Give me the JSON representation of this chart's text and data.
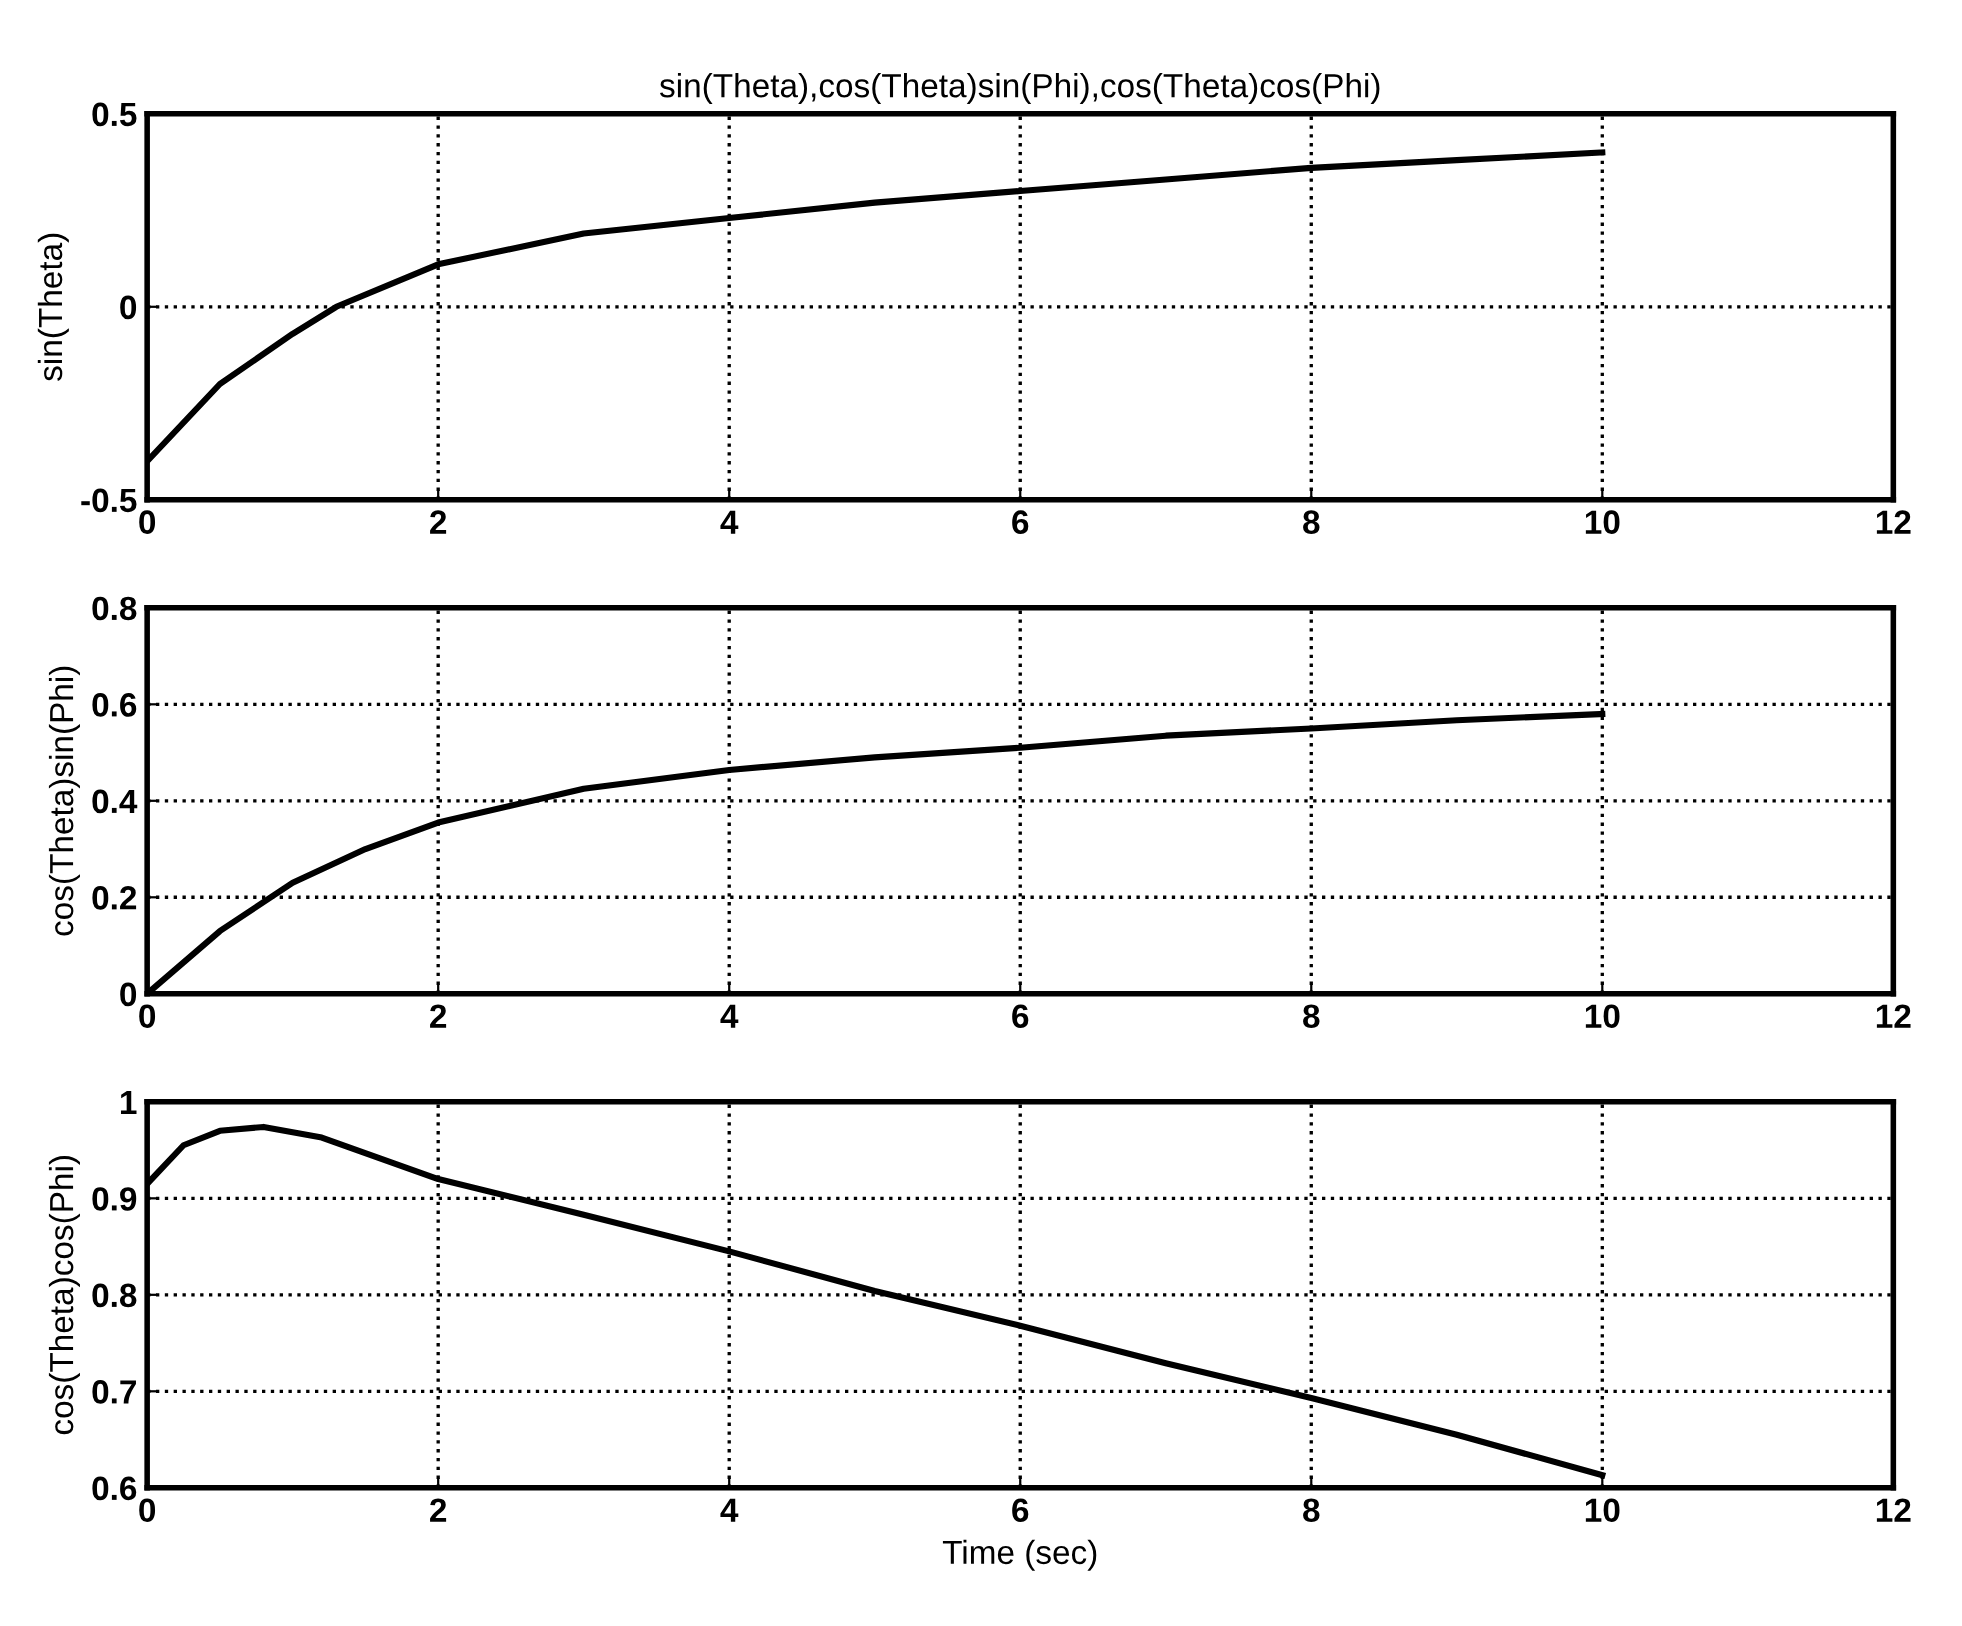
{
  "chart_data": [
    {
      "type": "line",
      "title": "sin(Theta),cos(Theta)sin(Phi),cos(Theta)cos(Phi)",
      "ylabel": "sin(Theta)",
      "xlim": [
        0,
        12
      ],
      "xticks": [
        0,
        2,
        4,
        6,
        8,
        10,
        12
      ],
      "ylim": [
        -0.5,
        0.5
      ],
      "yticks": [
        -0.5,
        0,
        0.5
      ],
      "grid": true,
      "line_style": "solid",
      "x": [
        0,
        0.5,
        1,
        1.3,
        2,
        3,
        4,
        5,
        6,
        7,
        8,
        9,
        10
      ],
      "series": [
        {
          "color": "#000000",
          "values": [
            -0.4,
            -0.2,
            -0.07,
            0,
            0.11,
            0.19,
            0.23,
            0.27,
            0.3,
            0.33,
            0.36,
            0.38,
            0.4
          ]
        }
      ]
    },
    {
      "type": "line",
      "ylabel": "cos(Theta)sin(Phi)",
      "xlim": [
        0,
        12
      ],
      "xticks": [
        0,
        2,
        4,
        6,
        8,
        10,
        12
      ],
      "ylim": [
        0,
        0.8
      ],
      "yticks": [
        0,
        0.2,
        0.4,
        0.6,
        0.8
      ],
      "grid": true,
      "line_style": "solid",
      "x": [
        0,
        0.5,
        1,
        1.5,
        2,
        3,
        4,
        5,
        6,
        7,
        8,
        9,
        10
      ],
      "series": [
        {
          "color": "#000000",
          "values": [
            0,
            0.13,
            0.23,
            0.3,
            0.355,
            0.425,
            0.464,
            0.49,
            0.51,
            0.535,
            0.55,
            0.567,
            0.58
          ]
        }
      ]
    },
    {
      "type": "line",
      "ylabel": "cos(Theta)cos(Phi)",
      "xlabel": "Time (sec)",
      "xlim": [
        0,
        12
      ],
      "xticks": [
        0,
        2,
        4,
        6,
        8,
        10,
        12
      ],
      "ylim": [
        0.6,
        1
      ],
      "yticks": [
        0.6,
        0.7,
        0.8,
        0.9,
        1
      ],
      "grid": true,
      "line_style": "solid",
      "x": [
        0,
        0.25,
        0.5,
        0.8,
        1.2,
        2,
        3,
        4,
        5,
        6,
        7,
        8,
        9,
        10
      ],
      "series": [
        {
          "color": "#000000",
          "values": [
            0.915,
            0.955,
            0.97,
            0.974,
            0.963,
            0.92,
            0.883,
            0.845,
            0.804,
            0.768,
            0.729,
            0.693,
            0.655,
            0.613
          ]
        }
      ]
    }
  ]
}
